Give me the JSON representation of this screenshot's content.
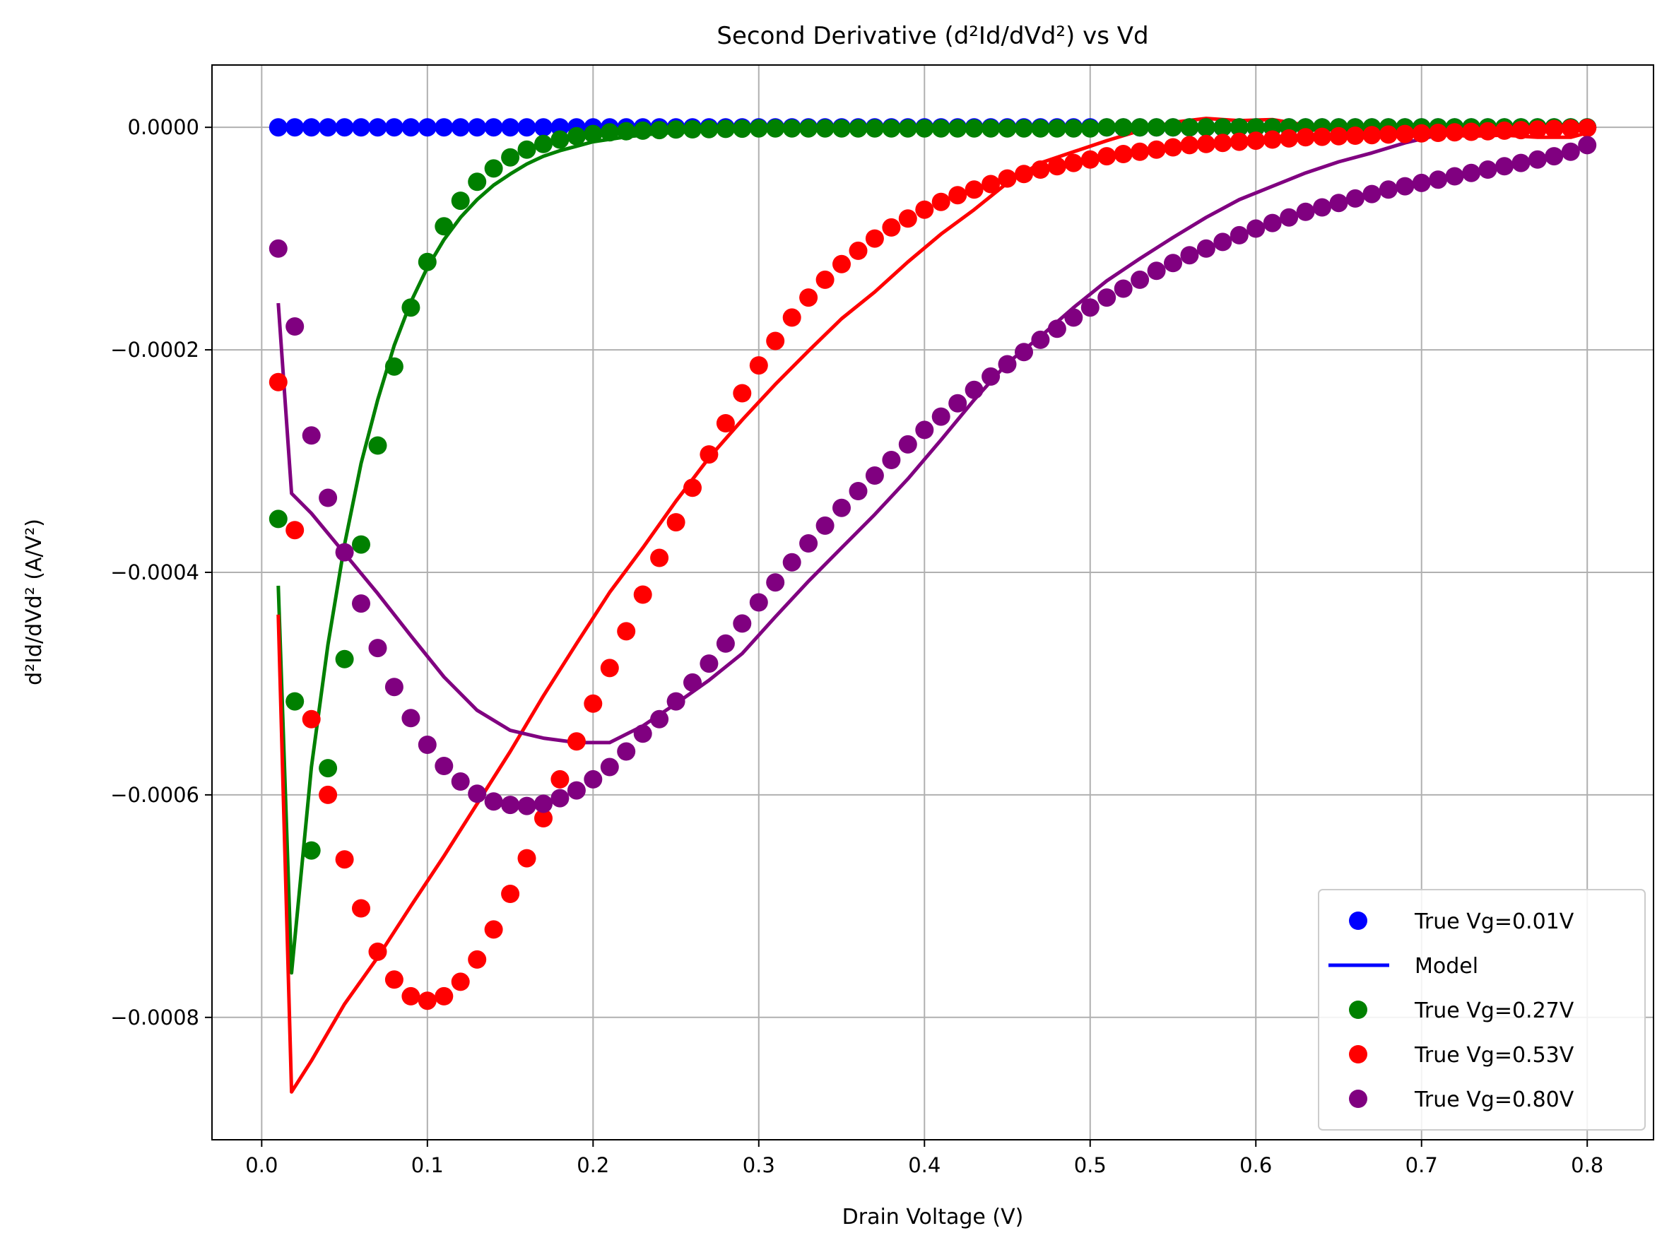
{
  "chart_data": {
    "type": "scatter",
    "title": "Second Derivative (d²Id/dVd²) vs Vd",
    "xlabel": "Drain Voltage (V)",
    "ylabel": "d²Id/dVd² (A/V²)",
    "xlim": [
      -0.03,
      0.84
    ],
    "ylim": [
      -0.00091,
      5.6e-05
    ],
    "grid": true,
    "legend_position": "lower right",
    "x_ticks": [
      0.0,
      0.1,
      0.2,
      0.3,
      0.4,
      0.5,
      0.6,
      0.7,
      0.8
    ],
    "x_tick_labels": [
      "0.0",
      "0.1",
      "0.2",
      "0.3",
      "0.4",
      "0.5",
      "0.6",
      "0.7",
      "0.8"
    ],
    "y_ticks": [
      0,
      -0.0002,
      -0.0004,
      -0.0006,
      -0.0008
    ],
    "y_tick_labels": [
      "0.0000",
      "−0.0002",
      "−0.0004",
      "−0.0006",
      "−0.0008"
    ],
    "legend": [
      {
        "label": "True Vg=0.01V",
        "kind": "marker",
        "color": "#0000ff"
      },
      {
        "label": "Model",
        "kind": "line",
        "color": "#0000ff"
      },
      {
        "label": "True Vg=0.27V",
        "kind": "marker",
        "color": "#008000"
      },
      {
        "label": "True Vg=0.53V",
        "kind": "marker",
        "color": "#ff0000"
      },
      {
        "label": "True Vg=0.80V",
        "kind": "marker",
        "color": "#800080"
      }
    ],
    "series": [
      {
        "name": "True Vg=0.01V",
        "kind": "scatter",
        "color": "#0000ff",
        "x": [
          0.01,
          0.02,
          0.03,
          0.04,
          0.05,
          0.06,
          0.07,
          0.08,
          0.09,
          0.1,
          0.11,
          0.12,
          0.13,
          0.14,
          0.15,
          0.16,
          0.17,
          0.18,
          0.19,
          0.2,
          0.21,
          0.22,
          0.23,
          0.24,
          0.25,
          0.26,
          0.27,
          0.28,
          0.29,
          0.3,
          0.31,
          0.32,
          0.33,
          0.34,
          0.35,
          0.36,
          0.37,
          0.38,
          0.39,
          0.4,
          0.41,
          0.42,
          0.43,
          0.44,
          0.45,
          0.46,
          0.47,
          0.48,
          0.49,
          0.5,
          0.51,
          0.52,
          0.53,
          0.54,
          0.55,
          0.56,
          0.57,
          0.58,
          0.59,
          0.6,
          0.61,
          0.62,
          0.63,
          0.64,
          0.65,
          0.66,
          0.67,
          0.68,
          0.69,
          0.7,
          0.71,
          0.72,
          0.73,
          0.74,
          0.75,
          0.76,
          0.77,
          0.78,
          0.79,
          0.8
        ],
        "y": [
          0,
          0,
          0,
          0,
          0,
          0,
          0,
          0,
          0,
          0,
          0,
          0,
          0,
          0,
          0,
          0,
          0,
          0,
          0,
          0,
          0,
          0,
          0,
          0,
          0,
          0,
          0,
          0,
          0,
          0,
          0,
          0,
          0,
          0,
          0,
          0,
          0,
          0,
          0,
          0,
          0,
          0,
          0,
          0,
          0,
          0,
          0,
          0,
          0,
          0,
          0,
          0,
          0,
          0,
          0,
          0,
          0,
          0,
          0,
          0,
          0,
          0,
          0,
          0,
          0,
          0,
          0,
          0,
          0,
          0,
          0,
          0,
          0,
          0,
          0,
          0,
          0,
          0,
          0,
          0
        ]
      },
      {
        "name": "Model Vg=0.01V",
        "kind": "line",
        "color": "#0000ff",
        "x": [
          0.01,
          0.8
        ],
        "y": [
          0,
          0
        ]
      },
      {
        "name": "True Vg=0.27V",
        "kind": "scatter",
        "color": "#008000",
        "x": [
          0.01,
          0.02,
          0.03,
          0.04,
          0.05,
          0.06,
          0.07,
          0.08,
          0.09,
          0.1,
          0.11,
          0.12,
          0.13,
          0.14,
          0.15,
          0.16,
          0.17,
          0.18,
          0.19,
          0.2,
          0.21,
          0.22,
          0.23,
          0.24,
          0.25,
          0.26,
          0.27,
          0.28,
          0.29,
          0.3,
          0.31,
          0.32,
          0.33,
          0.34,
          0.35,
          0.36,
          0.37,
          0.38,
          0.39,
          0.4,
          0.41,
          0.42,
          0.43,
          0.44,
          0.45,
          0.46,
          0.47,
          0.48,
          0.49,
          0.5,
          0.51,
          0.52,
          0.53,
          0.54,
          0.55,
          0.56,
          0.57,
          0.58,
          0.59,
          0.6,
          0.61,
          0.62,
          0.63,
          0.64,
          0.65,
          0.66,
          0.67,
          0.68,
          0.69,
          0.7,
          0.71,
          0.72,
          0.73,
          0.74,
          0.75,
          0.76,
          0.77,
          0.78,
          0.79,
          0.8
        ],
        "y": [
          -0.000352,
          -0.000516,
          -0.00065,
          -0.000576,
          -0.000478,
          -0.000375,
          -0.000286,
          -0.000215,
          -0.000162,
          -0.000121,
          -8.9e-05,
          -6.6e-05,
          -4.9e-05,
          -3.7e-05,
          -2.7e-05,
          -2e-05,
          -1.5e-05,
          -1.1e-05,
          -8e-06,
          -6e-06,
          -4.5e-06,
          -3.5e-06,
          -3e-06,
          -2.5e-06,
          -2e-06,
          -1.8e-06,
          -1.6e-06,
          -1.4e-06,
          -1.2e-06,
          -1e-06,
          -1e-06,
          -1e-06,
          -1e-06,
          -1e-06,
          -1e-06,
          -1e-06,
          -1e-06,
          -1e-06,
          -1e-06,
          -1e-06,
          -1e-06,
          -1e-06,
          -1e-06,
          -1e-06,
          -1e-06,
          -1e-06,
          -1e-06,
          -1e-06,
          -1e-06,
          -1e-06,
          0,
          0,
          0,
          0,
          0,
          0,
          0,
          0,
          0,
          0,
          0,
          0,
          0,
          0,
          0,
          0,
          0,
          0,
          0,
          0,
          0,
          0,
          0,
          0,
          0,
          0,
          0,
          0,
          0,
          0
        ]
      },
      {
        "name": "Model Vg=0.27V",
        "kind": "line",
        "color": "#008000",
        "x": [
          0.01,
          0.018,
          0.03,
          0.04,
          0.05,
          0.06,
          0.07,
          0.08,
          0.09,
          0.1,
          0.11,
          0.12,
          0.13,
          0.14,
          0.15,
          0.16,
          0.17,
          0.18,
          0.19,
          0.2,
          0.22,
          0.24,
          0.26,
          0.28,
          0.3,
          0.35,
          0.4,
          0.45,
          0.5,
          0.55,
          0.6,
          0.65,
          0.7,
          0.75,
          0.8
        ],
        "y": [
          -0.000412,
          -0.00076,
          -0.000575,
          -0.000465,
          -0.000375,
          -0.000302,
          -0.000245,
          -0.000196,
          -0.000157,
          -0.000126,
          -0.000101,
          -8.1e-05,
          -6.5e-05,
          -5.2e-05,
          -4.2e-05,
          -3.3e-05,
          -2.6e-05,
          -2.1e-05,
          -1.7e-05,
          -1.3e-05,
          -8.5e-06,
          -5.5e-06,
          -3.8e-06,
          -2.6e-06,
          -1.8e-06,
          -8e-07,
          -4e-07,
          -2e-07,
          0,
          0,
          0,
          0,
          0,
          0,
          0
        ]
      },
      {
        "name": "True Vg=0.53V",
        "kind": "scatter",
        "color": "#ff0000",
        "x": [
          0.01,
          0.02,
          0.03,
          0.04,
          0.05,
          0.06,
          0.07,
          0.08,
          0.09,
          0.1,
          0.11,
          0.12,
          0.13,
          0.14,
          0.15,
          0.16,
          0.17,
          0.18,
          0.19,
          0.2,
          0.21,
          0.22,
          0.23,
          0.24,
          0.25,
          0.26,
          0.27,
          0.28,
          0.29,
          0.3,
          0.31,
          0.32,
          0.33,
          0.34,
          0.35,
          0.36,
          0.37,
          0.38,
          0.39,
          0.4,
          0.41,
          0.42,
          0.43,
          0.44,
          0.45,
          0.46,
          0.47,
          0.48,
          0.49,
          0.5,
          0.51,
          0.52,
          0.53,
          0.54,
          0.55,
          0.56,
          0.57,
          0.58,
          0.59,
          0.6,
          0.61,
          0.62,
          0.63,
          0.64,
          0.65,
          0.66,
          0.67,
          0.68,
          0.69,
          0.7,
          0.71,
          0.72,
          0.73,
          0.74,
          0.75,
          0.76,
          0.77,
          0.78,
          0.79,
          0.8
        ],
        "y": [
          -0.000229,
          -0.000362,
          -0.000532,
          -0.0006,
          -0.000658,
          -0.000702,
          -0.000741,
          -0.000766,
          -0.000781,
          -0.000785,
          -0.000781,
          -0.000768,
          -0.000748,
          -0.000721,
          -0.000689,
          -0.000657,
          -0.000621,
          -0.000586,
          -0.000552,
          -0.000518,
          -0.000486,
          -0.000453,
          -0.00042,
          -0.000387,
          -0.000355,
          -0.000324,
          -0.000294,
          -0.000266,
          -0.000239,
          -0.000214,
          -0.000192,
          -0.000171,
          -0.000153,
          -0.000137,
          -0.000123,
          -0.000111,
          -0.0001,
          -9e-05,
          -8.2e-05,
          -7.4e-05,
          -6.7e-05,
          -6.1e-05,
          -5.6e-05,
          -5.1e-05,
          -4.6e-05,
          -4.2e-05,
          -3.8e-05,
          -3.5e-05,
          -3.2e-05,
          -2.9e-05,
          -2.6e-05,
          -2.4e-05,
          -2.2e-05,
          -2e-05,
          -1.8e-05,
          -1.6e-05,
          -1.5e-05,
          -1.4e-05,
          -1.3e-05,
          -1.2e-05,
          -1.1e-05,
          -1e-05,
          -9e-06,
          -8.5e-06,
          -8e-06,
          -7.5e-06,
          -7e-06,
          -6.5e-06,
          -6e-06,
          -5.5e-06,
          -5e-06,
          -4.5e-06,
          -4e-06,
          -3.5e-06,
          -3e-06,
          -2.5e-06,
          -2e-06,
          -1.5e-06,
          -1e-06,
          -5e-07
        ]
      },
      {
        "name": "Model Vg=0.53V",
        "kind": "line",
        "color": "#ff0000",
        "x": [
          0.01,
          0.018,
          0.03,
          0.05,
          0.07,
          0.09,
          0.11,
          0.13,
          0.15,
          0.17,
          0.19,
          0.21,
          0.23,
          0.25,
          0.27,
          0.29,
          0.31,
          0.33,
          0.35,
          0.37,
          0.39,
          0.41,
          0.43,
          0.45,
          0.47,
          0.49,
          0.51,
          0.53,
          0.55,
          0.57,
          0.59,
          0.61,
          0.63,
          0.65,
          0.67,
          0.69,
          0.71,
          0.73,
          0.75,
          0.77,
          0.79,
          0.8
        ],
        "y": [
          -0.000438,
          -0.000867,
          -0.000839,
          -0.000788,
          -0.000746,
          -0.0007,
          -0.000655,
          -0.000608,
          -0.000561,
          -0.000511,
          -0.000464,
          -0.000418,
          -0.000378,
          -0.000336,
          -0.000297,
          -0.000263,
          -0.000231,
          -0.000201,
          -0.000172,
          -0.000148,
          -0.000121,
          -9.6e-05,
          -7.4e-05,
          -5e-05,
          -3.2e-05,
          -2.2e-05,
          -1.2e-05,
          -3e-06,
          4.5e-06,
          8e-06,
          6e-06,
          7e-06,
          2e-06,
          -2.5e-06,
          -4.5e-06,
          -5.5e-06,
          -6.5e-06,
          -8e-06,
          -7e-06,
          -9e-06,
          -9e-06,
          -5e-06
        ]
      },
      {
        "name": "True Vg=0.80V",
        "kind": "scatter",
        "color": "#800080",
        "x": [
          0.01,
          0.02,
          0.03,
          0.04,
          0.05,
          0.06,
          0.07,
          0.08,
          0.09,
          0.1,
          0.11,
          0.12,
          0.13,
          0.14,
          0.15,
          0.16,
          0.17,
          0.18,
          0.19,
          0.2,
          0.21,
          0.22,
          0.23,
          0.24,
          0.25,
          0.26,
          0.27,
          0.28,
          0.29,
          0.3,
          0.31,
          0.32,
          0.33,
          0.34,
          0.35,
          0.36,
          0.37,
          0.38,
          0.39,
          0.4,
          0.41,
          0.42,
          0.43,
          0.44,
          0.45,
          0.46,
          0.47,
          0.48,
          0.49,
          0.5,
          0.51,
          0.52,
          0.53,
          0.54,
          0.55,
          0.56,
          0.57,
          0.58,
          0.59,
          0.6,
          0.61,
          0.62,
          0.63,
          0.64,
          0.65,
          0.66,
          0.67,
          0.68,
          0.69,
          0.7,
          0.71,
          0.72,
          0.73,
          0.74,
          0.75,
          0.76,
          0.77,
          0.78,
          0.79,
          0.8
        ],
        "y": [
          -0.000109,
          -0.000179,
          -0.000277,
          -0.000333,
          -0.000382,
          -0.000428,
          -0.000468,
          -0.000503,
          -0.000531,
          -0.000555,
          -0.000574,
          -0.000588,
          -0.000599,
          -0.000606,
          -0.000609,
          -0.00061,
          -0.000608,
          -0.000603,
          -0.000596,
          -0.000586,
          -0.000575,
          -0.000561,
          -0.000545,
          -0.000532,
          -0.000516,
          -0.000499,
          -0.000482,
          -0.000464,
          -0.000446,
          -0.000427,
          -0.000409,
          -0.000391,
          -0.000374,
          -0.000358,
          -0.000342,
          -0.000327,
          -0.000313,
          -0.000299,
          -0.000285,
          -0.000272,
          -0.00026,
          -0.000248,
          -0.000236,
          -0.000224,
          -0.000213,
          -0.000202,
          -0.000191,
          -0.000181,
          -0.000171,
          -0.000162,
          -0.000153,
          -0.000145,
          -0.000137,
          -0.000129,
          -0.000122,
          -0.000115,
          -0.000109,
          -0.000103,
          -9.7e-05,
          -9.1e-05,
          -8.6e-05,
          -8.1e-05,
          -7.6e-05,
          -7.2e-05,
          -6.8e-05,
          -6.4e-05,
          -6e-05,
          -5.6e-05,
          -5.3e-05,
          -5e-05,
          -4.7e-05,
          -4.4e-05,
          -4.1e-05,
          -3.8e-05,
          -3.5e-05,
          -3.2e-05,
          -2.9e-05,
          -2.6e-05,
          -2.2e-05,
          -1.6e-05
        ]
      },
      {
        "name": "Model Vg=0.80V",
        "kind": "line",
        "color": "#800080",
        "x": [
          0.01,
          0.018,
          0.03,
          0.05,
          0.07,
          0.09,
          0.11,
          0.13,
          0.15,
          0.17,
          0.19,
          0.21,
          0.23,
          0.25,
          0.27,
          0.29,
          0.31,
          0.33,
          0.35,
          0.37,
          0.39,
          0.41,
          0.43,
          0.45,
          0.47,
          0.49,
          0.51,
          0.53,
          0.55,
          0.57,
          0.59,
          0.61,
          0.63,
          0.65,
          0.67,
          0.69,
          0.71,
          0.73,
          0.75,
          0.77,
          0.79,
          0.8
        ],
        "y": [
          -0.000158,
          -0.000329,
          -0.000347,
          -0.000383,
          -0.000419,
          -0.000457,
          -0.000494,
          -0.000524,
          -0.000542,
          -0.000549,
          -0.000553,
          -0.000553,
          -0.000538,
          -0.000518,
          -0.000497,
          -0.000473,
          -0.00044,
          -0.000408,
          -0.000378,
          -0.000348,
          -0.000316,
          -0.000281,
          -0.000245,
          -0.000212,
          -0.000188,
          -0.000162,
          -0.000138,
          -0.000118,
          -9.9e-05,
          -8.1e-05,
          -6.5e-05,
          -5.3e-05,
          -4.1e-05,
          -3.1e-05,
          -2.3e-05,
          -1.4e-05,
          -7e-06,
          -6e-06,
          -3e-06,
          -4e-06,
          -2e-06,
          3e-06
        ]
      }
    ]
  }
}
